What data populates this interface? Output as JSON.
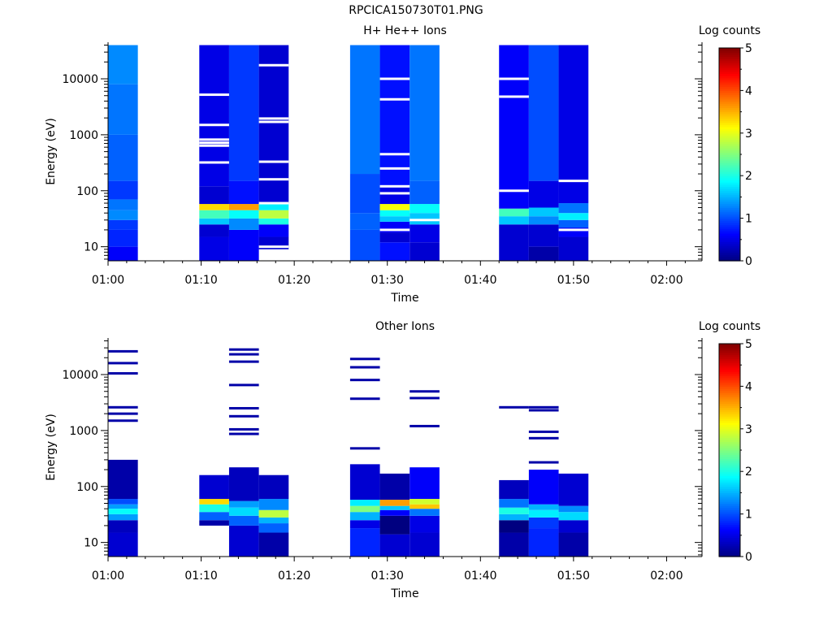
{
  "title": "RPCICA150730T01.PNG",
  "chart_data": [
    {
      "type": "heatmap",
      "title": "H+ He++ Ions",
      "xlabel": "Time",
      "ylabel": "Energy (eV)",
      "yscale": "log",
      "ylim": [
        5.6,
        45000
      ],
      "x_ticks": [
        "01:00",
        "01:10",
        "01:20",
        "01:30",
        "01:40",
        "01:50",
        "02:00"
      ],
      "y_ticks": [
        "10",
        "100",
        "1000",
        "10000"
      ],
      "colorbar": {
        "label": "Log counts",
        "ticks": [
          "0",
          "1",
          "2",
          "3",
          "4",
          "5"
        ],
        "range": [
          0,
          5
        ]
      },
      "columns": [
        {
          "t0": 0.0,
          "t1": 3.2,
          "e_min": 5.6,
          "e_max": 40000,
          "bands": [
            {
              "e0": 5.6,
              "e1": 10,
              "v": 0.6
            },
            {
              "e0": 10,
              "e1": 20,
              "v": 0.8
            },
            {
              "e0": 20,
              "e1": 30,
              "v": 0.9
            },
            {
              "e0": 30,
              "e1": 45,
              "v": 1.3
            },
            {
              "e0": 45,
              "e1": 70,
              "v": 1.2
            },
            {
              "e0": 70,
              "e1": 150,
              "v": 0.9
            },
            {
              "e0": 150,
              "e1": 1000,
              "v": 1.1
            },
            {
              "e0": 1000,
              "e1": 8000,
              "v": 1.2
            },
            {
              "e0": 8000,
              "e1": 40000,
              "v": 1.3
            }
          ]
        },
        {
          "t0": 9.8,
          "t1": 13.0,
          "e_min": 5.6,
          "e_max": 40000,
          "bands": [
            {
              "e0": 5.6,
              "e1": 15,
              "v": 0.5
            },
            {
              "e0": 15,
              "e1": 25,
              "v": 0.4
            },
            {
              "e0": 25,
              "e1": 32,
              "v": 1.6
            },
            {
              "e0": 32,
              "e1": 45,
              "v": 2.2
            },
            {
              "e0": 45,
              "e1": 58,
              "v": 3.3
            },
            {
              "e0": 58,
              "e1": 120,
              "v": 0.4
            },
            {
              "e0": 120,
              "e1": 40000,
              "v": 0.5
            }
          ]
        },
        {
          "t0": 13.0,
          "t1": 16.2,
          "e_min": 5.6,
          "e_max": 40000,
          "bands": [
            {
              "e0": 5.6,
              "e1": 20,
              "v": 0.6
            },
            {
              "e0": 20,
              "e1": 32,
              "v": 1.3
            },
            {
              "e0": 32,
              "e1": 45,
              "v": 1.9
            },
            {
              "e0": 45,
              "e1": 58,
              "v": 3.6
            },
            {
              "e0": 58,
              "e1": 150,
              "v": 0.7
            },
            {
              "e0": 150,
              "e1": 40000,
              "v": 0.9
            }
          ]
        },
        {
          "t0": 16.2,
          "t1": 19.4,
          "e_min": 9,
          "e_max": 40000,
          "bands": [
            {
              "e0": 9,
              "e1": 15,
              "v": 0.4
            },
            {
              "e0": 15,
              "e1": 25,
              "v": 0.6
            },
            {
              "e0": 25,
              "e1": 32,
              "v": 2.0
            },
            {
              "e0": 32,
              "e1": 45,
              "v": 2.8
            },
            {
              "e0": 45,
              "e1": 60,
              "v": 1.8
            },
            {
              "e0": 60,
              "e1": 40000,
              "v": 0.4
            }
          ]
        },
        {
          "t0": 26.0,
          "t1": 29.2,
          "e_min": 5.6,
          "e_max": 40000,
          "bands": [
            {
              "e0": 5.6,
              "e1": 20,
              "v": 1.0
            },
            {
              "e0": 20,
              "e1": 40,
              "v": 1.1
            },
            {
              "e0": 40,
              "e1": 200,
              "v": 1.0
            },
            {
              "e0": 200,
              "e1": 40000,
              "v": 1.2
            }
          ]
        },
        {
          "t0": 29.2,
          "t1": 32.4,
          "e_min": 5.6,
          "e_max": 40000,
          "bands": [
            {
              "e0": 5.6,
              "e1": 12,
              "v": 0.7
            },
            {
              "e0": 12,
              "e1": 18,
              "v": 0.4
            },
            {
              "e0": 18,
              "e1": 28,
              "v": 0.6
            },
            {
              "e0": 28,
              "e1": 35,
              "v": 1.6
            },
            {
              "e0": 35,
              "e1": 45,
              "v": 1.9
            },
            {
              "e0": 45,
              "e1": 58,
              "v": 3.1
            },
            {
              "e0": 58,
              "e1": 120,
              "v": 0.5
            },
            {
              "e0": 120,
              "e1": 40000,
              "v": 0.7
            }
          ]
        },
        {
          "t0": 32.4,
          "t1": 35.6,
          "e_min": 5.6,
          "e_max": 40000,
          "bands": [
            {
              "e0": 5.6,
              "e1": 12,
              "v": 0.4
            },
            {
              "e0": 12,
              "e1": 25,
              "v": 0.5
            },
            {
              "e0": 25,
              "e1": 40,
              "v": 1.6
            },
            {
              "e0": 40,
              "e1": 58,
              "v": 1.9
            },
            {
              "e0": 58,
              "e1": 150,
              "v": 1.1
            },
            {
              "e0": 150,
              "e1": 40000,
              "v": 1.2
            }
          ]
        },
        {
          "t0": 42.0,
          "t1": 45.2,
          "e_min": 5.6,
          "e_max": 40000,
          "bands": [
            {
              "e0": 5.6,
              "e1": 25,
              "v": 0.4
            },
            {
              "e0": 25,
              "e1": 35,
              "v": 1.6
            },
            {
              "e0": 35,
              "e1": 48,
              "v": 2.2
            },
            {
              "e0": 48,
              "e1": 100,
              "v": 0.6
            },
            {
              "e0": 100,
              "e1": 40000,
              "v": 0.6
            }
          ]
        },
        {
          "t0": 45.2,
          "t1": 48.4,
          "e_min": 5.6,
          "e_max": 40000,
          "bands": [
            {
              "e0": 5.6,
              "e1": 10,
              "v": 0.2
            },
            {
              "e0": 10,
              "e1": 25,
              "v": 0.4
            },
            {
              "e0": 25,
              "e1": 35,
              "v": 1.3
            },
            {
              "e0": 35,
              "e1": 50,
              "v": 1.6
            },
            {
              "e0": 50,
              "e1": 150,
              "v": 0.5
            },
            {
              "e0": 150,
              "e1": 40000,
              "v": 1.0
            }
          ]
        },
        {
          "t0": 48.4,
          "t1": 51.6,
          "e_min": 5.6,
          "e_max": 40000,
          "bands": [
            {
              "e0": 5.6,
              "e1": 15,
              "v": 0.4
            },
            {
              "e0": 15,
              "e1": 22,
              "v": 0.6
            },
            {
              "e0": 22,
              "e1": 30,
              "v": 1.1
            },
            {
              "e0": 30,
              "e1": 40,
              "v": 1.8
            },
            {
              "e0": 40,
              "e1": 60,
              "v": 1.2
            },
            {
              "e0": 60,
              "e1": 40000,
              "v": 0.5
            }
          ]
        }
      ],
      "gaps": [
        {
          "t0": 9.8,
          "t1": 13.0,
          "e": [
            320,
            640,
            720,
            820,
            1500,
            5200
          ]
        },
        {
          "t0": 16.2,
          "t1": 19.4,
          "e": [
            10,
            60,
            160,
            330,
            1700,
            1950,
            17500
          ]
        },
        {
          "t0": 29.2,
          "t1": 32.4,
          "e": [
            20,
            90,
            120,
            250,
            450,
            4300,
            10000
          ]
        },
        {
          "t0": 32.4,
          "t1": 35.6,
          "e": [
            30
          ]
        },
        {
          "t0": 42.0,
          "t1": 45.2,
          "e": [
            100,
            4800,
            10000
          ]
        },
        {
          "t0": 48.4,
          "t1": 51.6,
          "e": [
            20,
            150
          ]
        }
      ]
    },
    {
      "type": "heatmap",
      "title": "Other Ions",
      "xlabel": "Time",
      "ylabel": "Energy (eV)",
      "yscale": "log",
      "ylim": [
        5.6,
        45000
      ],
      "x_ticks": [
        "01:00",
        "01:10",
        "01:20",
        "01:30",
        "01:40",
        "01:50",
        "02:00"
      ],
      "y_ticks": [
        "10",
        "100",
        "1000",
        "10000"
      ],
      "colorbar": {
        "label": "Log counts",
        "ticks": [
          "0",
          "1",
          "2",
          "3",
          "4",
          "5"
        ],
        "range": [
          0,
          5
        ]
      },
      "columns": [
        {
          "t0": 0.0,
          "t1": 3.2,
          "e_min": 5.6,
          "e_max": 300,
          "bands": [
            {
              "e0": 5.6,
              "e1": 15,
              "v": 0.4
            },
            {
              "e0": 15,
              "e1": 25,
              "v": 0.3
            },
            {
              "e0": 25,
              "e1": 32,
              "v": 1.4
            },
            {
              "e0": 32,
              "e1": 40,
              "v": 1.9
            },
            {
              "e0": 40,
              "e1": 48,
              "v": 1.4
            },
            {
              "e0": 48,
              "e1": 60,
              "v": 1.0
            },
            {
              "e0": 60,
              "e1": 300,
              "v": 0.2
            }
          ],
          "lines": [
            1500,
            2000,
            2600,
            10500,
            16000,
            26000
          ]
        },
        {
          "t0": 9.8,
          "t1": 13.0,
          "e_min": 20,
          "e_max": 160,
          "bands": [
            {
              "e0": 20,
              "e1": 25,
              "v": 0.2
            },
            {
              "e0": 25,
              "e1": 35,
              "v": 1.1
            },
            {
              "e0": 35,
              "e1": 48,
              "v": 2.0
            },
            {
              "e0": 48,
              "e1": 60,
              "v": 3.3
            },
            {
              "e0": 60,
              "e1": 160,
              "v": 0.4
            }
          ],
          "lines": []
        },
        {
          "t0": 13.0,
          "t1": 16.2,
          "e_min": 5.6,
          "e_max": 220,
          "bands": [
            {
              "e0": 5.6,
              "e1": 20,
              "v": 0.4
            },
            {
              "e0": 20,
              "e1": 30,
              "v": 1.1
            },
            {
              "e0": 30,
              "e1": 42,
              "v": 1.7
            },
            {
              "e0": 42,
              "e1": 55,
              "v": 1.4
            },
            {
              "e0": 55,
              "e1": 220,
              "v": 0.3
            }
          ],
          "lines": [
            870,
            1050,
            1800,
            2500,
            6500,
            17000,
            23000,
            28000
          ]
        },
        {
          "t0": 16.2,
          "t1": 19.4,
          "e_min": 5.6,
          "e_max": 160,
          "bands": [
            {
              "e0": 5.6,
              "e1": 15,
              "v": 0.2
            },
            {
              "e0": 15,
              "e1": 22,
              "v": 1.1
            },
            {
              "e0": 22,
              "e1": 28,
              "v": 1.5
            },
            {
              "e0": 28,
              "e1": 38,
              "v": 2.8
            },
            {
              "e0": 38,
              "e1": 60,
              "v": 1.3
            },
            {
              "e0": 60,
              "e1": 160,
              "v": 0.3
            }
          ],
          "lines": []
        },
        {
          "t0": 26.0,
          "t1": 29.2,
          "e_min": 5.6,
          "e_max": 250,
          "bands": [
            {
              "e0": 5.6,
              "e1": 18,
              "v": 0.8
            },
            {
              "e0": 18,
              "e1": 25,
              "v": 0.5
            },
            {
              "e0": 25,
              "e1": 35,
              "v": 1.5
            },
            {
              "e0": 35,
              "e1": 45,
              "v": 2.5
            },
            {
              "e0": 45,
              "e1": 58,
              "v": 1.8
            },
            {
              "e0": 58,
              "e1": 250,
              "v": 0.4
            }
          ],
          "lines": [
            480,
            3700,
            8000,
            13500,
            19000
          ]
        },
        {
          "t0": 29.2,
          "t1": 32.4,
          "e_min": 5.6,
          "e_max": 170,
          "bands": [
            {
              "e0": 5.6,
              "e1": 14,
              "v": 0.4
            },
            {
              "e0": 14,
              "e1": 30,
              "v": 0.0
            },
            {
              "e0": 30,
              "e1": 38,
              "v": 0.6
            },
            {
              "e0": 38,
              "e1": 45,
              "v": 1.6
            },
            {
              "e0": 45,
              "e1": 58,
              "v": 3.6
            },
            {
              "e0": 58,
              "e1": 170,
              "v": 0.2
            }
          ],
          "lines": []
        },
        {
          "t0": 32.4,
          "t1": 35.6,
          "e_min": 5.6,
          "e_max": 220,
          "bands": [
            {
              "e0": 5.6,
              "e1": 15,
              "v": 0.4
            },
            {
              "e0": 15,
              "e1": 30,
              "v": 0.5
            },
            {
              "e0": 30,
              "e1": 40,
              "v": 1.2
            },
            {
              "e0": 40,
              "e1": 48,
              "v": 3.4
            },
            {
              "e0": 48,
              "e1": 60,
              "v": 2.9
            },
            {
              "e0": 60,
              "e1": 220,
              "v": 0.6
            }
          ],
          "lines": [
            1200,
            3800,
            5000
          ]
        },
        {
          "t0": 42.0,
          "t1": 45.2,
          "e_min": 5.6,
          "e_max": 130,
          "bands": [
            {
              "e0": 5.6,
              "e1": 15,
              "v": 0.2
            },
            {
              "e0": 15,
              "e1": 25,
              "v": 0.0
            },
            {
              "e0": 25,
              "e1": 32,
              "v": 1.5
            },
            {
              "e0": 32,
              "e1": 42,
              "v": 2.0
            },
            {
              "e0": 42,
              "e1": 60,
              "v": 1.2
            },
            {
              "e0": 60,
              "e1": 130,
              "v": 0.3
            }
          ],
          "lines": [
            2600
          ]
        },
        {
          "t0": 45.2,
          "t1": 48.4,
          "e_min": 5.6,
          "e_max": 200,
          "bands": [
            {
              "e0": 5.6,
              "e1": 18,
              "v": 0.8
            },
            {
              "e0": 18,
              "e1": 28,
              "v": 0.9
            },
            {
              "e0": 28,
              "e1": 38,
              "v": 1.8
            },
            {
              "e0": 38,
              "e1": 48,
              "v": 1.5
            },
            {
              "e0": 48,
              "e1": 200,
              "v": 0.6
            }
          ],
          "lines": [
            270,
            730,
            950,
            2300,
            2600
          ]
        },
        {
          "t0": 48.4,
          "t1": 51.6,
          "e_min": 5.6,
          "e_max": 170,
          "bands": [
            {
              "e0": 5.6,
              "e1": 15,
              "v": 0.2
            },
            {
              "e0": 15,
              "e1": 25,
              "v": 0.4
            },
            {
              "e0": 25,
              "e1": 35,
              "v": 1.7
            },
            {
              "e0": 35,
              "e1": 45,
              "v": 1.3
            },
            {
              "e0": 45,
              "e1": 170,
              "v": 0.4
            }
          ],
          "lines": []
        }
      ]
    }
  ]
}
